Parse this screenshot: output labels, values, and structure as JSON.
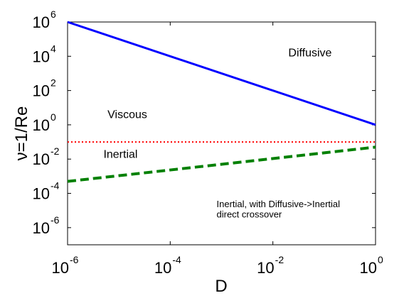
{
  "chart_data": {
    "type": "line",
    "xlabel": "D",
    "ylabel": "ν=1/Re",
    "xscale": "log",
    "yscale": "log",
    "xlim": [
      1e-06,
      1
    ],
    "ylim": [
      1e-07,
      1000000.0
    ],
    "grid": false,
    "x_ticks": [
      {
        "base": "10",
        "exp": "-6",
        "value": 1e-06
      },
      {
        "base": "10",
        "exp": "-4",
        "value": 0.0001
      },
      {
        "base": "10",
        "exp": "-2",
        "value": 0.01
      },
      {
        "base": "10",
        "exp": "0",
        "value": 1
      }
    ],
    "y_ticks": [
      {
        "base": "10",
        "exp": "6",
        "value": 1000000.0
      },
      {
        "base": "10",
        "exp": "4",
        "value": 10000.0
      },
      {
        "base": "10",
        "exp": "2",
        "value": 100.0
      },
      {
        "base": "10",
        "exp": "0",
        "value": 1
      },
      {
        "base": "10",
        "exp": "-2",
        "value": 0.01
      },
      {
        "base": "10",
        "exp": "-4",
        "value": 0.0001
      },
      {
        "base": "10",
        "exp": "-6",
        "value": 1e-06
      }
    ],
    "series": [
      {
        "style": "solid",
        "color": "#0000ff",
        "x": [
          1e-06,
          1
        ],
        "y": [
          1000000.0,
          1
        ]
      },
      {
        "style": "dotted",
        "color": "#ff0000",
        "x": [
          1e-06,
          1
        ],
        "y": [
          0.1,
          0.1
        ]
      },
      {
        "style": "dashed",
        "color": "#008000",
        "x": [
          1e-06,
          1
        ],
        "y": [
          0.0005,
          0.05
        ]
      }
    ],
    "annotations": [
      {
        "text": "Diffusive",
        "x": 0.02,
        "y": 10000.0,
        "size": 16
      },
      {
        "text": "Viscous",
        "x": 6e-06,
        "y": 2.5,
        "size": 16
      },
      {
        "text": "Inertial",
        "x": 5e-06,
        "y": 0.012,
        "size": 16
      },
      {
        "text": "Inertial, with Diffusive->Inertial",
        "x": 0.0008,
        "y": 1.6e-05,
        "size": 13
      },
      {
        "text": "direct crossover",
        "x": 0.0008,
        "y": 4e-06,
        "size": 13
      }
    ]
  }
}
